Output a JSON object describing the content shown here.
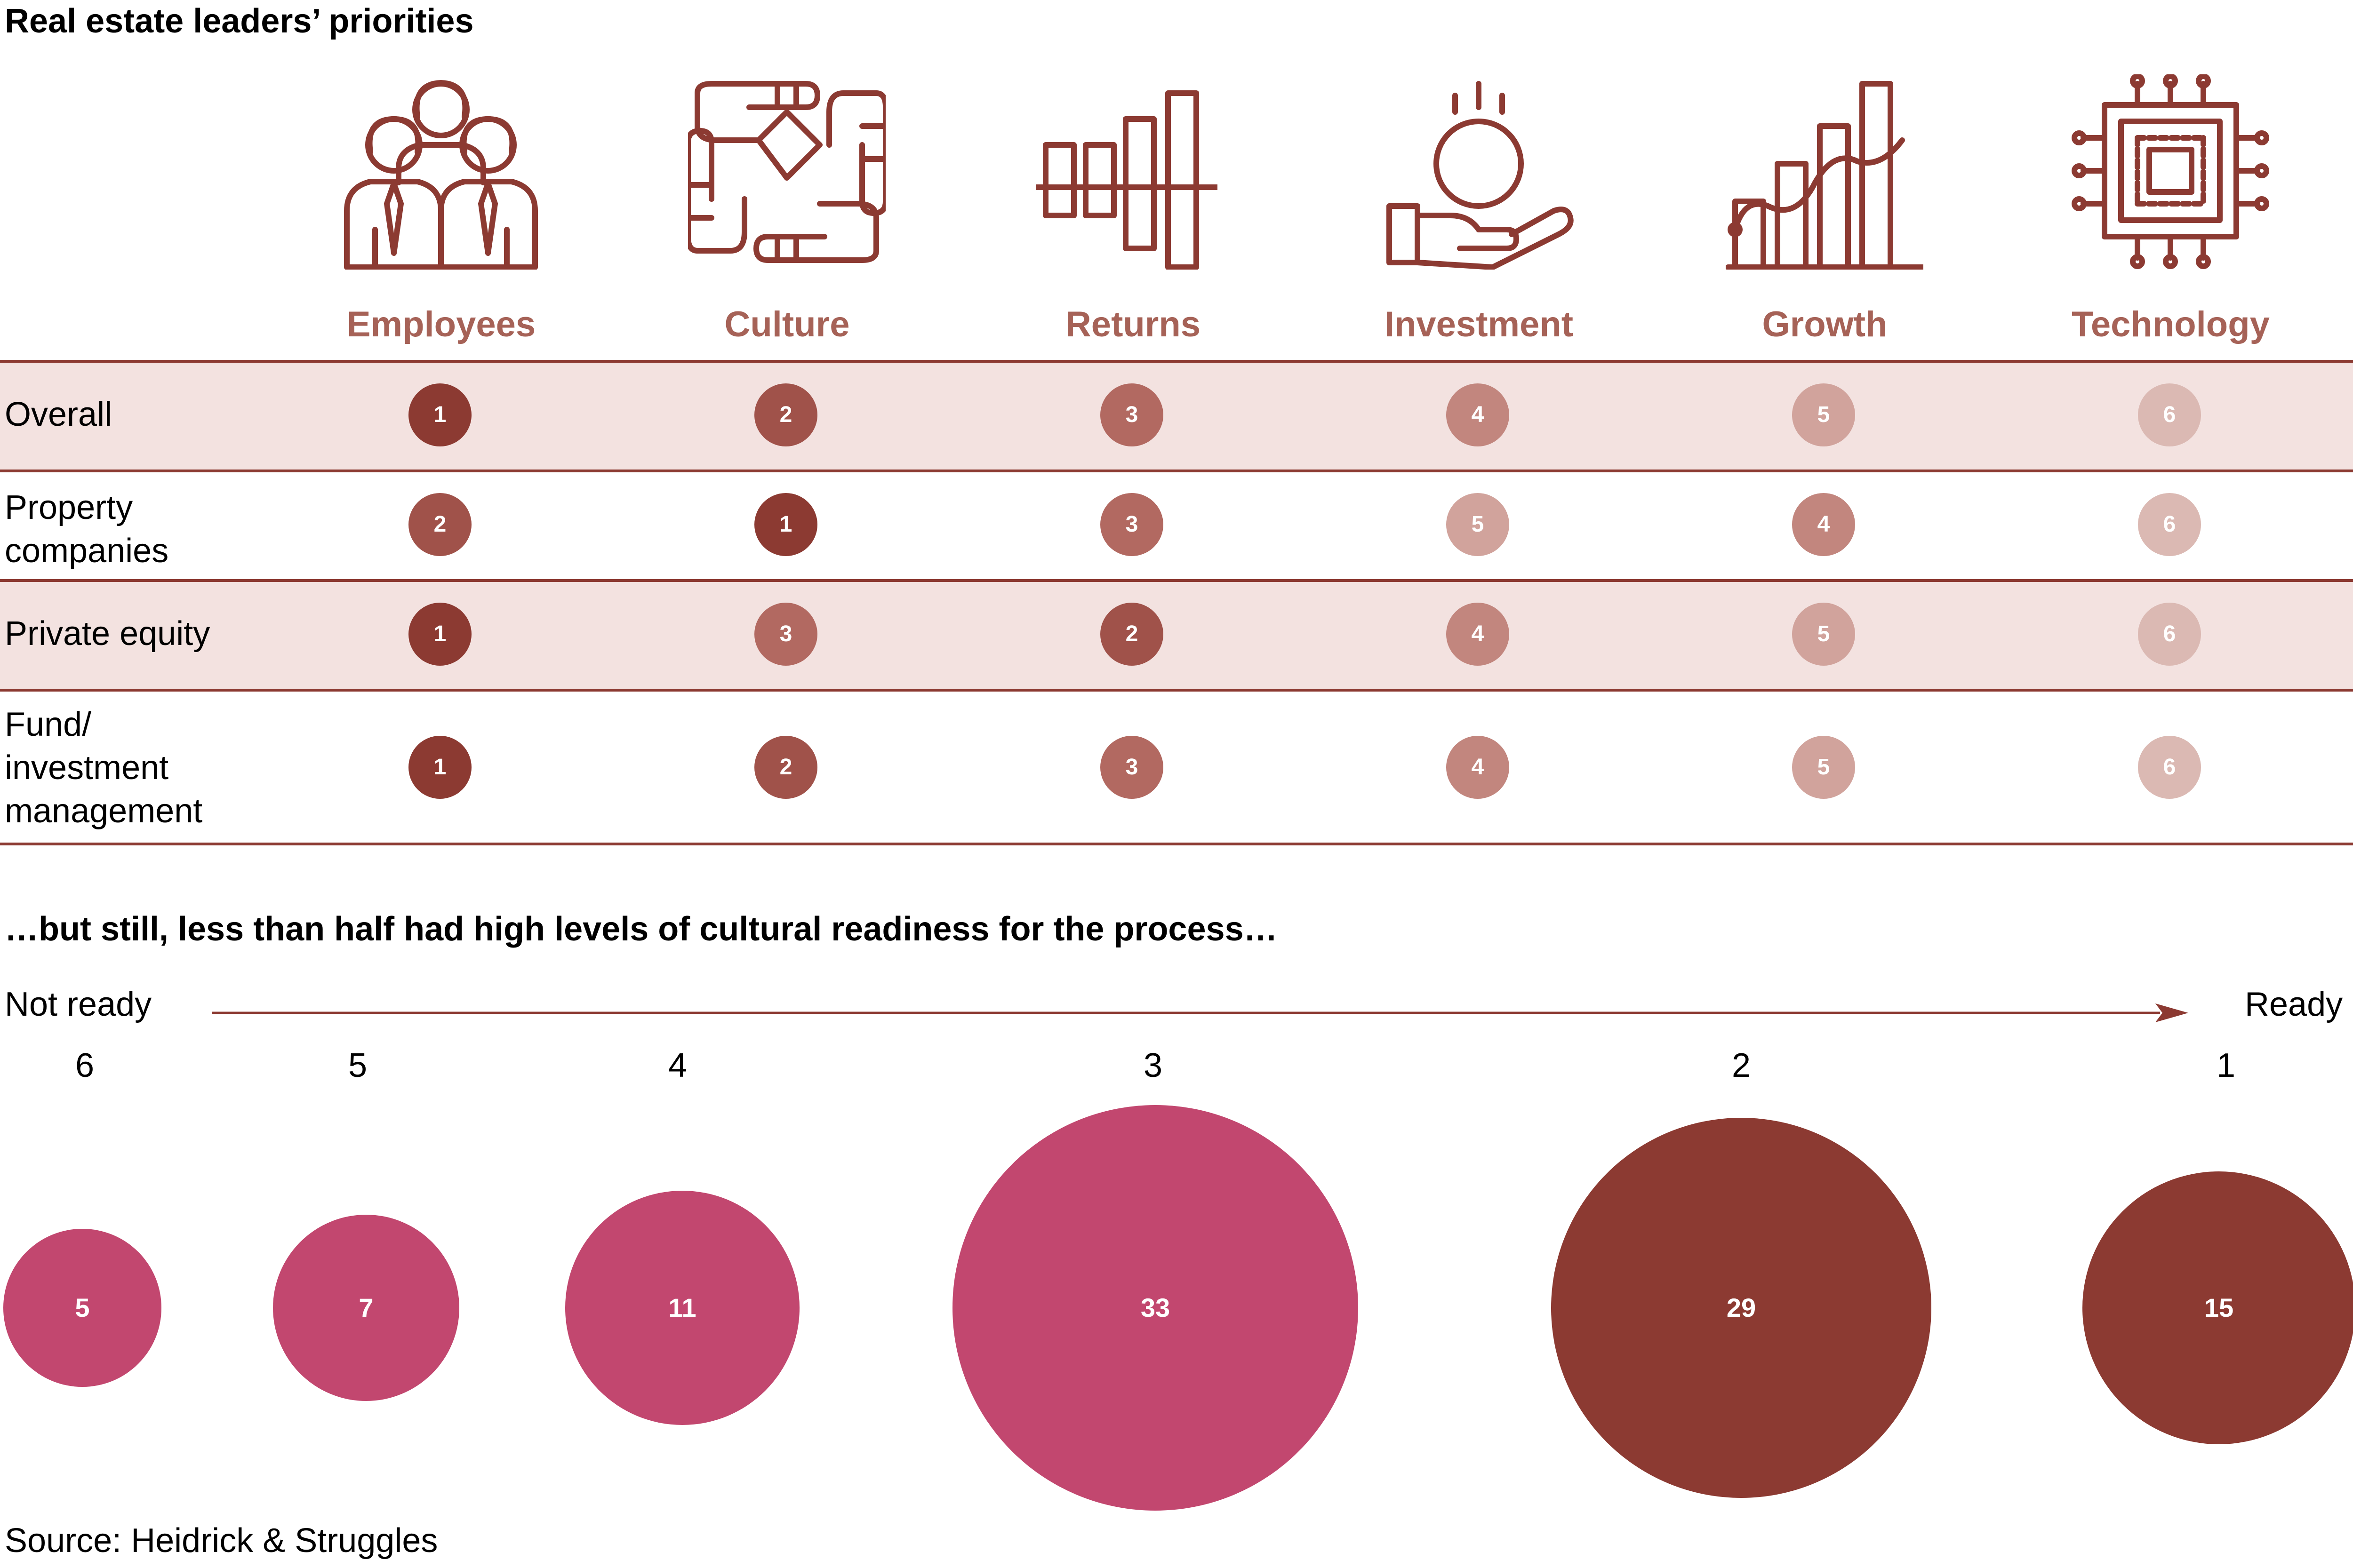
{
  "title": "Real estate leaders’ priorities",
  "subtitle": "…but still, less than half had high levels of cultural readiness for the process…",
  "source": "Source: Heidrick & Struggles",
  "colors": {
    "dark_red": "#8c3a32",
    "header_text": "#a66257",
    "shade": "#f3e2e0",
    "pink": "#c2476f",
    "rank_1": "#8c3a32",
    "rank_2": "#a0524a",
    "rank_3": "#b26961",
    "rank_4": "#c2867e",
    "rank_5": "#d1a39c",
    "rank_6": "#dbb9b3"
  },
  "columns": [
    {
      "label": "Employees",
      "icon": "people-group-icon"
    },
    {
      "label": "Culture",
      "icon": "hands-together-icon"
    },
    {
      "label": "Returns",
      "icon": "bar-chart-icon"
    },
    {
      "label": "Investment",
      "icon": "coin-hand-icon"
    },
    {
      "label": "Growth",
      "icon": "growth-chart-icon"
    },
    {
      "label": "Technology",
      "icon": "chip-icon"
    }
  ],
  "rows": [
    {
      "label": "Overall",
      "ranks": [
        1,
        2,
        3,
        4,
        5,
        6
      ]
    },
    {
      "label": "Property companies",
      "ranks": [
        2,
        1,
        3,
        5,
        4,
        6
      ]
    },
    {
      "label": "Private equity",
      "ranks": [
        1,
        3,
        2,
        4,
        5,
        6
      ]
    },
    {
      "label": "Fund/ investment management",
      "ranks": [
        1,
        2,
        3,
        4,
        5,
        6
      ]
    }
  ],
  "readiness": {
    "left_label": "Not ready",
    "right_label": "Ready"
  },
  "chart_data": {
    "type": "scatter",
    "title": "…but still, less than half had high levels of cultural readiness for the process…",
    "xlabel": "Not ready → Ready",
    "categories": [
      "6",
      "5",
      "4",
      "3",
      "2",
      "1"
    ],
    "values": [
      5,
      7,
      11,
      33,
      29,
      15
    ],
    "colors": [
      "#c2476f",
      "#c2476f",
      "#c2476f",
      "#c2476f",
      "#8c3a32",
      "#8c3a32"
    ]
  }
}
